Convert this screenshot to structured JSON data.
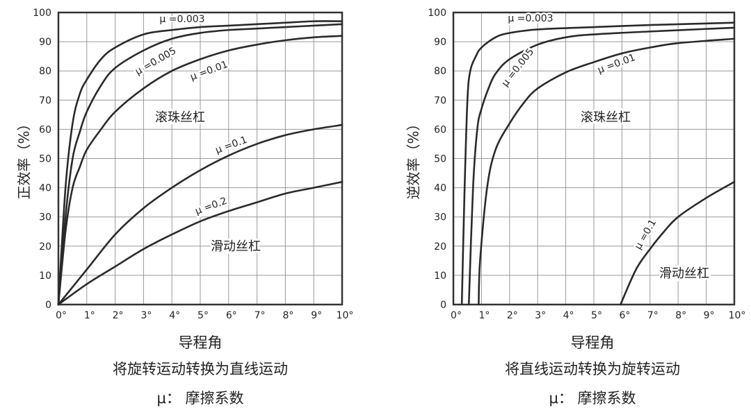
{
  "chart_data": [
    {
      "type": "line",
      "ylabel": "正效率（%）",
      "xlabel": "导程角",
      "subtitle": "将旋转运动转换为直线运动",
      "note": "μ： 摩擦系数",
      "xlim": [
        0,
        10
      ],
      "ylim": [
        0,
        100
      ],
      "x_ticks": [
        "0°",
        "1°",
        "2°",
        "3°",
        "4°",
        "5°",
        "6°",
        "7°",
        "8°",
        "9°",
        "10°"
      ],
      "y_ticks": [
        "0",
        "10",
        "20",
        "30",
        "40",
        "50",
        "60",
        "70",
        "80",
        "90",
        "100"
      ],
      "grid": true,
      "region_labels": [
        "滚珠丝杠",
        "滑动丝杠"
      ],
      "series": [
        {
          "name": "μ =0.003",
          "x": [
            0,
            0.25,
            0.5,
            0.75,
            1,
            1.5,
            2,
            3,
            4,
            5,
            6,
            7,
            8,
            9,
            10
          ],
          "y": [
            0,
            40,
            62,
            72,
            77,
            84,
            88,
            92.5,
            94,
            95,
            95.5,
            96,
            96.5,
            97,
            97
          ]
        },
        {
          "name": "μ =0.005",
          "x": [
            0,
            0.25,
            0.5,
            0.75,
            1,
            1.5,
            2,
            3,
            4,
            5,
            6,
            7,
            8,
            9,
            10
          ],
          "y": [
            0,
            30,
            50,
            59,
            66,
            75,
            81,
            87,
            91,
            93,
            94,
            94.5,
            95,
            95.5,
            96
          ]
        },
        {
          "name": "μ =0.01",
          "x": [
            0,
            0.25,
            0.5,
            0.75,
            1,
            1.5,
            2,
            3,
            4,
            5,
            6,
            7,
            8,
            9,
            10
          ],
          "y": [
            0,
            25,
            40,
            47,
            53,
            60,
            66,
            74,
            80,
            84,
            87,
            89,
            90.5,
            91.5,
            92
          ]
        },
        {
          "name": "μ =0.1",
          "x": [
            0,
            1,
            2,
            3,
            4,
            5,
            6,
            7,
            8,
            9,
            10
          ],
          "y": [
            0,
            12,
            24,
            33,
            40,
            46,
            51,
            55,
            58,
            60,
            61.5
          ]
        },
        {
          "name": "μ =0.2",
          "x": [
            0,
            1,
            2,
            3,
            4,
            5,
            6,
            7,
            8,
            9,
            10
          ],
          "y": [
            0,
            7,
            13,
            19,
            24,
            28.5,
            32,
            35,
            38,
            40,
            42
          ]
        }
      ]
    },
    {
      "type": "line",
      "ylabel": "逆效率（%）",
      "xlabel": "导程角",
      "subtitle": "将直线运动转换为旋转运动",
      "note": "μ： 摩擦系数",
      "xlim": [
        0,
        10
      ],
      "ylim": [
        0,
        100
      ],
      "x_ticks": [
        "0°",
        "1°",
        "2°",
        "3°",
        "4°",
        "5°",
        "6°",
        "7°",
        "8°",
        "9°",
        "10°"
      ],
      "y_ticks": [
        "0",
        "10",
        "20",
        "30",
        "40",
        "50",
        "60",
        "70",
        "80",
        "90",
        "100"
      ],
      "grid": true,
      "region_labels": [
        "滚珠丝杠",
        "滑动丝杠"
      ],
      "series": [
        {
          "name": "μ =0.003",
          "x": [
            0.3,
            0.4,
            0.5,
            0.6,
            0.8,
            1,
            1.5,
            2,
            3,
            5,
            7,
            10
          ],
          "y": [
            0,
            40,
            70,
            80,
            85,
            88,
            91.5,
            93,
            94.2,
            95,
            95.7,
            96.5
          ]
        },
        {
          "name": "μ =0.005",
          "x": [
            0.55,
            0.7,
            0.85,
            1,
            1.25,
            1.5,
            2,
            3,
            4,
            5,
            7,
            10
          ],
          "y": [
            0,
            40,
            60,
            67,
            74,
            79,
            84,
            89,
            91.5,
            92.5,
            93.5,
            94.8
          ]
        },
        {
          "name": "μ =0.01",
          "x": [
            0.9,
            0.95,
            1.2,
            1.5,
            2,
            2.5,
            3,
            4,
            5,
            6,
            7,
            8,
            10
          ],
          "y": [
            0,
            15,
            40,
            53,
            62,
            69,
            74,
            79.5,
            83,
            86,
            88,
            89.5,
            91
          ]
        },
        {
          "name": "μ =0.1",
          "x": [
            5.95,
            6.5,
            7,
            7.5,
            8,
            9,
            10
          ],
          "y": [
            0,
            12,
            19,
            25,
            30,
            36.5,
            42
          ]
        }
      ]
    }
  ]
}
